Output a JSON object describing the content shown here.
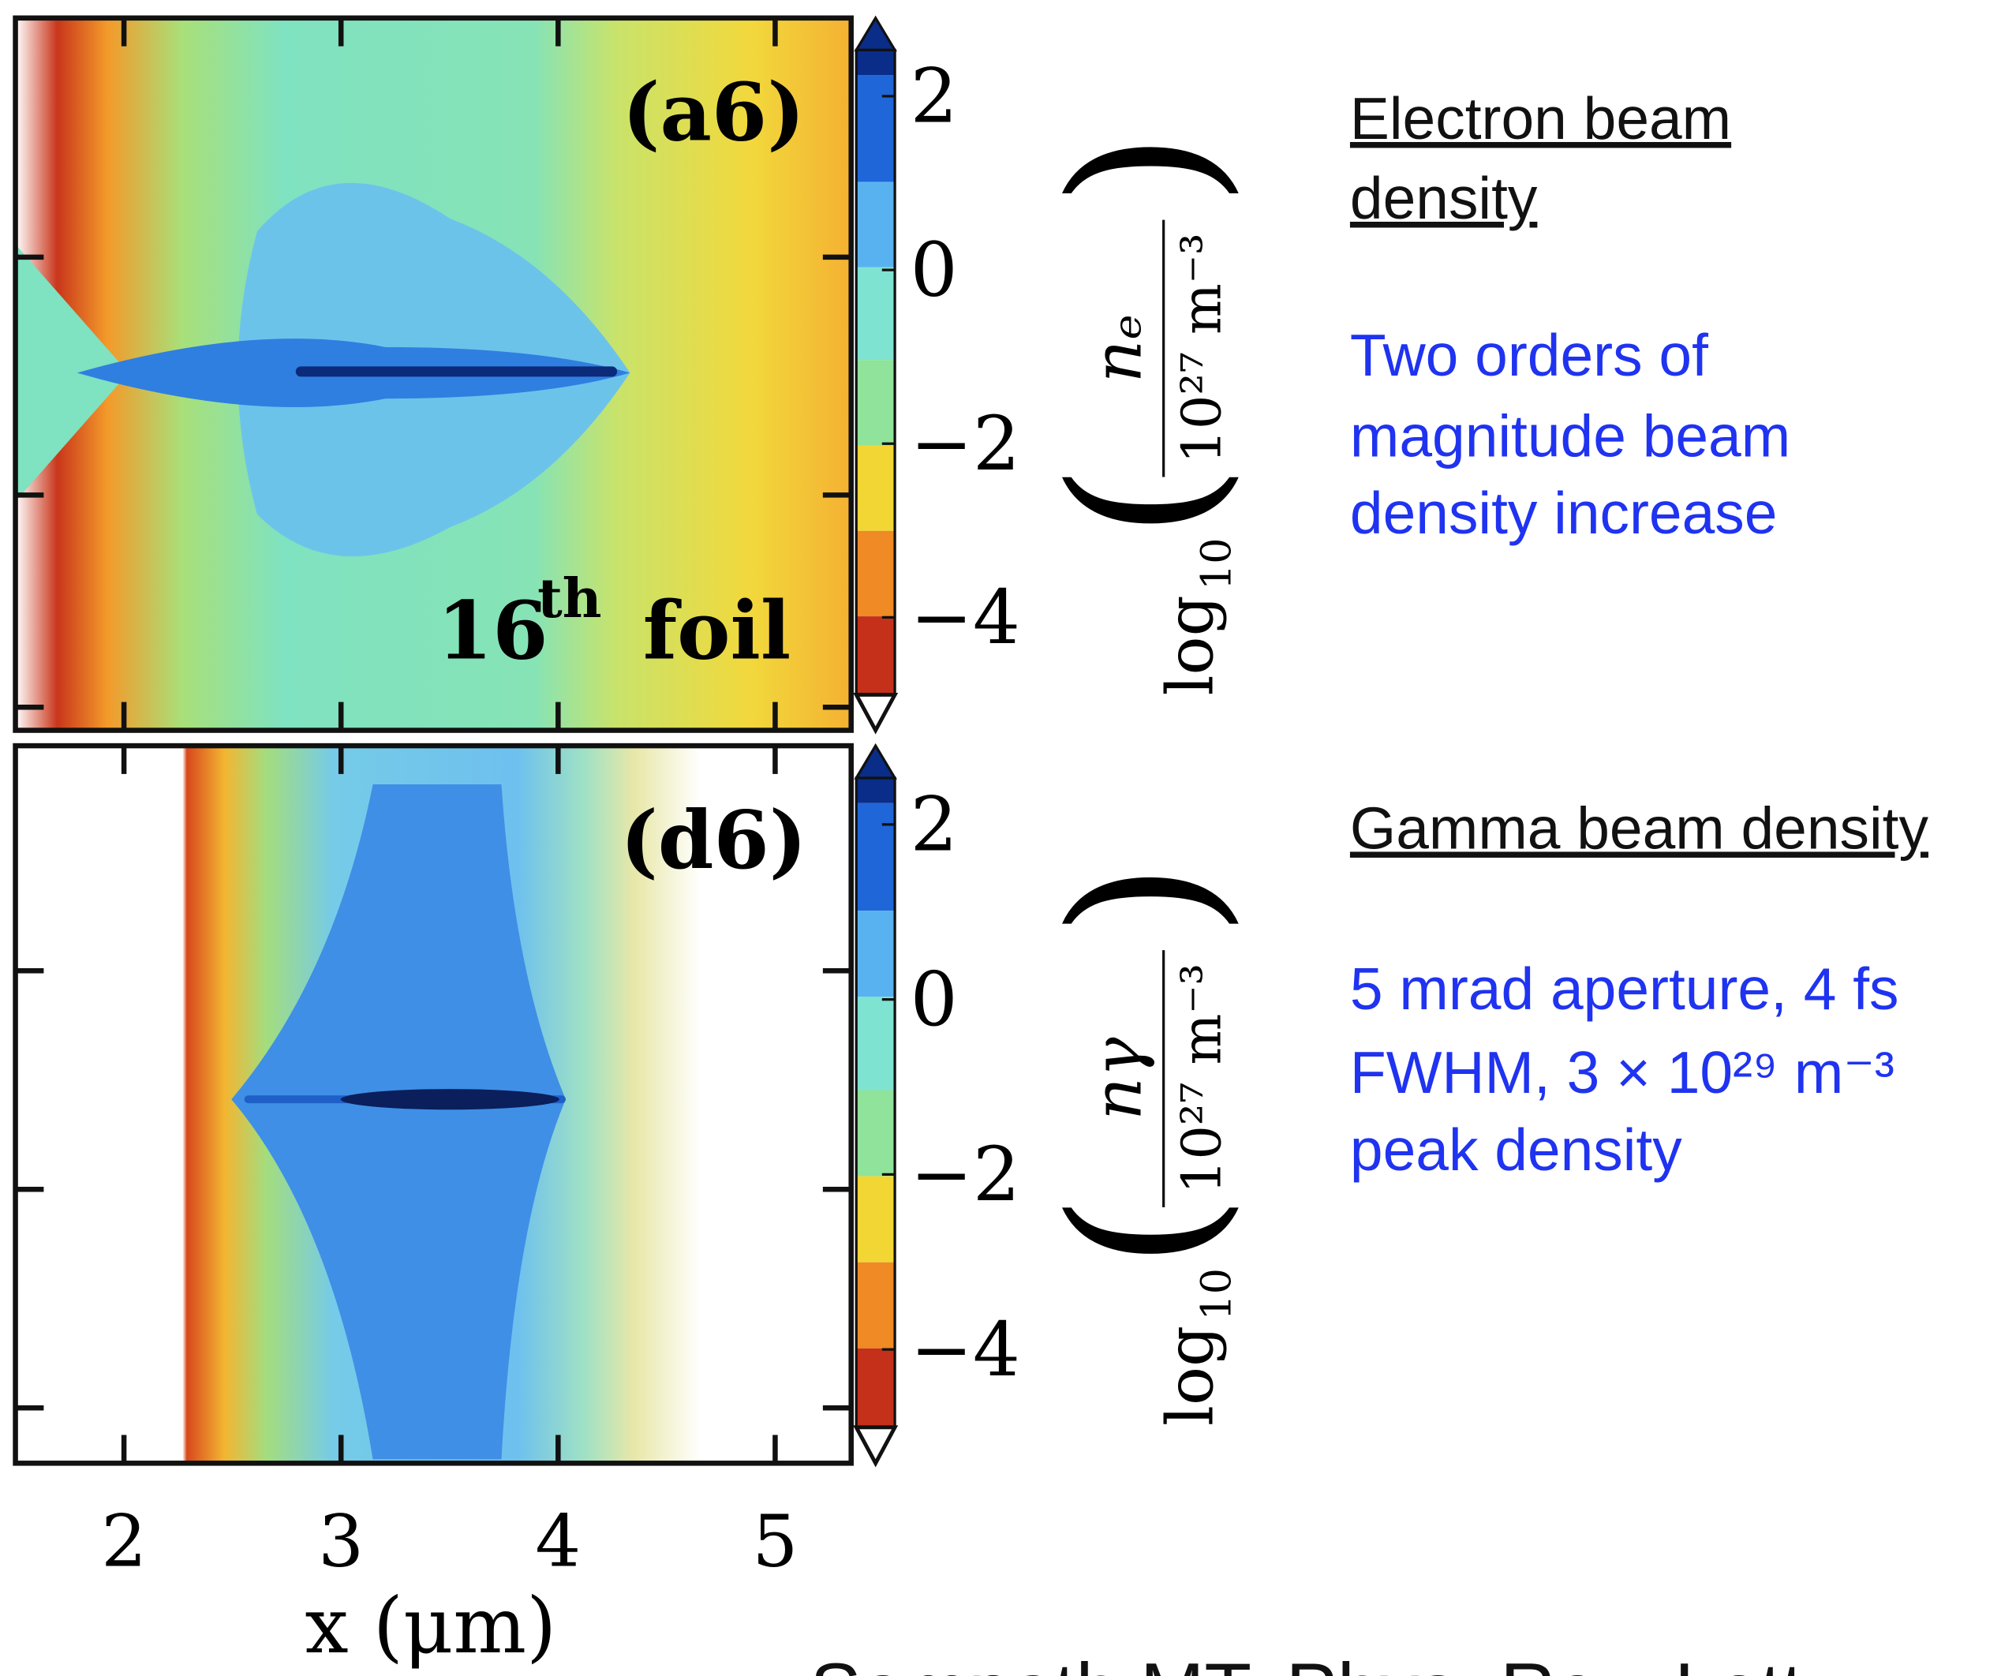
{
  "chart_data": [
    {
      "type": "heatmap",
      "panel_label": "(a6)",
      "annotation": {
        "number": "16",
        "suffix": "th",
        "word": "foil"
      },
      "xlim": [
        1.5,
        5.35
      ],
      "xticks": [
        2,
        3,
        4,
        5
      ],
      "colorbar_lim": [
        -5.3,
        2.9
      ],
      "colorbar_ticks": [
        2,
        0,
        {
          "value": -2,
          "label": "−2"
        },
        {
          "value": -4,
          "label": "−4"
        }
      ],
      "colorbar_label": {
        "prefix": "log",
        "prefix_sub": "10",
        "numerator": "nₑ",
        "denominator": "10²⁷ m⁻³"
      }
    },
    {
      "type": "heatmap",
      "panel_label": "(d6)",
      "xlim": [
        1.5,
        5.35
      ],
      "xticks": [
        2,
        3,
        4,
        5
      ],
      "xlabel": "x (μm)",
      "colorbar_lim": [
        -5.3,
        2.9
      ],
      "colorbar_ticks": [
        2,
        0,
        {
          "value": -2,
          "label": "−2"
        },
        {
          "value": -4,
          "label": "−4"
        }
      ],
      "colorbar_label": {
        "prefix": "log",
        "prefix_sub": "10",
        "numerator": "nγ",
        "denominator": "10²⁷ m⁻³"
      }
    }
  ],
  "notes": [
    {
      "heading": [
        "Electron beam",
        "density"
      ],
      "text": [
        "Two orders of",
        "magnitude beam",
        "density increase"
      ]
    },
    {
      "heading": [
        "Gamma beam density"
      ],
      "text": [
        "5 mrad aperture, 4 fs",
        "FWHM, 3 × 10²⁹ m⁻³",
        "peak density"
      ]
    }
  ],
  "citation": "Sampath        MT, Phys. Rev. Lett"
}
